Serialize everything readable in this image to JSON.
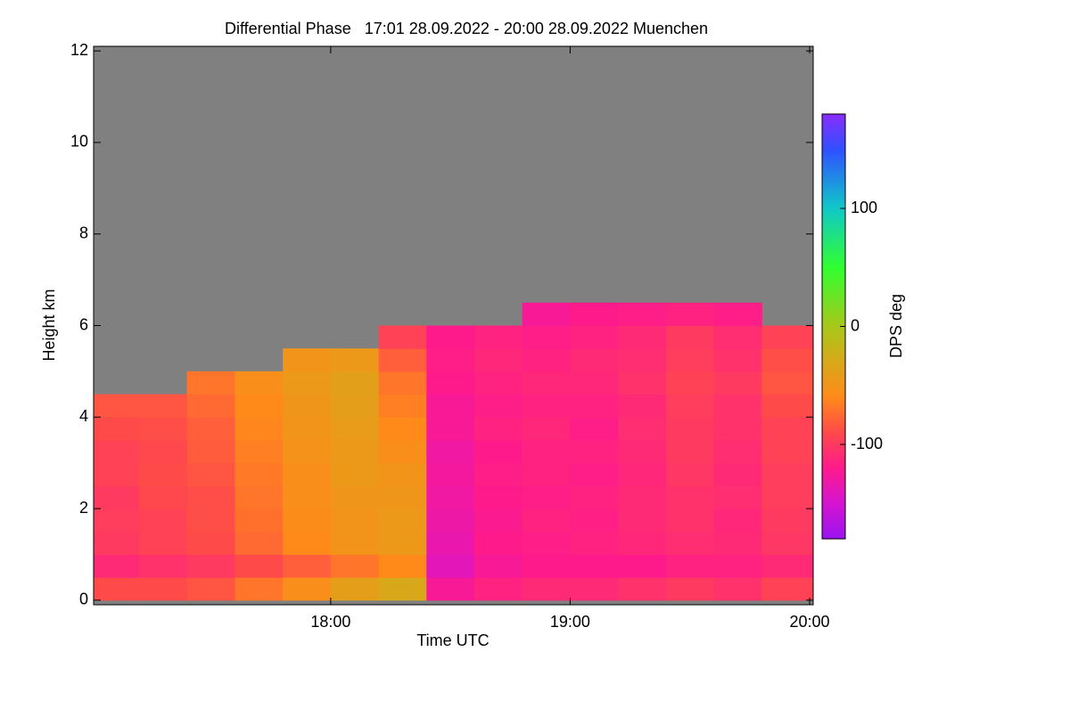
{
  "chart_data": {
    "type": "heatmap",
    "title": "Differential Phase   17:01 28.09.2022 - 20:00 28.09.2022 Muenchen",
    "x_label": "Time UTC",
    "y_label": "Height km",
    "colorbar_label": "DPS deg",
    "xlim": [
      17.01,
      20.015
    ],
    "ylim": [
      -0.1,
      12.1
    ],
    "xticks": [
      {
        "value": 18,
        "label": "18:00"
      },
      {
        "value": 19,
        "label": "19:00"
      },
      {
        "value": 20,
        "label": "20:00"
      }
    ],
    "yticks": [
      0,
      2,
      4,
      6,
      8,
      10,
      12
    ],
    "clim": [
      -180,
      180
    ],
    "cticks": [
      -100,
      0,
      100
    ],
    "nodata_color": "#808080",
    "colorscale": [
      [
        -180,
        "#9a14f0"
      ],
      [
        -150,
        "#d414d0"
      ],
      [
        -120,
        "#ff1a8c"
      ],
      [
        -90,
        "#ff4a4a"
      ],
      [
        -60,
        "#ff8a1a"
      ],
      [
        -30,
        "#d8a81a"
      ],
      [
        0,
        "#a8c81a"
      ],
      [
        50,
        "#30ff30"
      ],
      [
        100,
        "#10c8c8"
      ],
      [
        150,
        "#3050ff"
      ],
      [
        180,
        "#8a2cff"
      ]
    ],
    "x_bins": [
      17.01,
      17.2,
      17.4,
      17.6,
      17.8,
      18.0,
      18.2,
      18.4,
      18.6,
      18.8,
      19.0,
      19.2,
      19.4,
      19.6,
      19.8,
      20.015
    ],
    "y_bins": [
      0,
      0.5,
      1,
      1.5,
      2,
      2.5,
      3,
      3.5,
      4,
      4.5,
      5,
      5.5,
      6,
      6.5
    ],
    "values": [
      [
        -90,
        -90,
        -85,
        -70,
        -55,
        -40,
        -30,
        -125,
        -115,
        -110,
        -110,
        -105,
        -100,
        -105,
        -95
      ],
      [
        -110,
        -105,
        -100,
        -90,
        -80,
        -70,
        -60,
        -140,
        -125,
        -120,
        -120,
        -120,
        -115,
        -115,
        -110
      ],
      [
        -100,
        -95,
        -90,
        -75,
        -60,
        -50,
        -45,
        -135,
        -120,
        -118,
        -115,
        -112,
        -108,
        -110,
        -102
      ],
      [
        -98,
        -95,
        -88,
        -72,
        -58,
        -50,
        -45,
        -132,
        -122,
        -115,
        -117,
        -110,
        -105,
        -112,
        -100
      ],
      [
        -100,
        -92,
        -88,
        -70,
        -55,
        -48,
        -48,
        -130,
        -120,
        -118,
        -115,
        -110,
        -105,
        -108,
        -98
      ],
      [
        -95,
        -90,
        -85,
        -68,
        -55,
        -45,
        -50,
        -128,
        -118,
        -115,
        -118,
        -112,
        -102,
        -110,
        -98
      ],
      [
        -95,
        -92,
        -82,
        -65,
        -52,
        -45,
        -55,
        -130,
        -120,
        -115,
        -115,
        -110,
        -100,
        -108,
        -95
      ],
      [
        -90,
        -88,
        -80,
        -62,
        -50,
        -42,
        -60,
        -125,
        -115,
        -112,
        -118,
        -108,
        -100,
        -105,
        -95
      ],
      [
        -85,
        -85,
        -75,
        -60,
        -48,
        -40,
        -65,
        -125,
        -118,
        -115,
        -115,
        -110,
        -98,
        -105,
        -90
      ],
      [
        null,
        null,
        -70,
        -55,
        -45,
        -38,
        -70,
        -120,
        -115,
        -112,
        -112,
        -105,
        -95,
        -100,
        -85
      ],
      [
        null,
        null,
        null,
        null,
        -50,
        -45,
        -80,
        -118,
        -112,
        -115,
        -110,
        -108,
        -98,
        -105,
        -88
      ],
      [
        null,
        null,
        null,
        null,
        null,
        null,
        -95,
        -120,
        -115,
        -118,
        -115,
        -110,
        -100,
        -108,
        -95
      ],
      [
        null,
        null,
        null,
        null,
        null,
        null,
        null,
        null,
        null,
        -125,
        -120,
        -118,
        -115,
        -118,
        null
      ]
    ]
  }
}
